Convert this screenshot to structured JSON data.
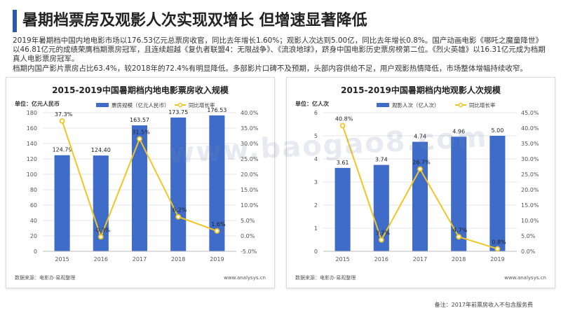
{
  "page": {
    "title": "暑期档票房及观影人次实现双增长 但增速显著降低",
    "paragraph1": "2019年暑期档中国内地电影市场以176.53亿元总票房收官，同比去年增长1.60%；观影人次达到5.00亿，同比去年增长0.8%。国产动画电影《哪吒之魔童降世》以46.81亿元的成绩荣膺档期票房冠军，且连续超越《复仇者联盟4：无限战争》、《流浪地球》，跻身中国电影历史票房榜第二位。《烈火英雄》以16.31亿元成为档期真人电影票房冠军。",
    "paragraph2": "档期内国产影片票房占比63.4%，较2018年的72.4%有明显降低。多部影片口碑不及预期，头部内容供给不足，用户观影热情降低，市场整体增幅持续收窄。",
    "watermark": "www.baogao8.com",
    "footnote": "备注：2017年前票房收入不包含服务费"
  },
  "colors": {
    "bar": "#3e6cc8",
    "line": "#f2c524",
    "grid": "#e6e6e6",
    "axis": "#555555"
  },
  "chart_data": [
    {
      "type": "bar",
      "title": "2015-2019中国暑期档内地电影票房收入规模",
      "unit_label": "单位：亿元人民币",
      "categories": [
        "2015",
        "2016",
        "2017",
        "2018",
        "2019"
      ],
      "series": [
        {
          "name": "票房规模（亿元人民币）",
          "type": "bar",
          "axis": "left",
          "values": [
            124.79,
            124.4,
            163.57,
            173.75,
            176.53
          ]
        },
        {
          "name": "同比增长率",
          "type": "line",
          "axis": "right",
          "values": [
            37.3,
            -0.3,
            31.5,
            6.2,
            1.6
          ]
        }
      ],
      "bar_labels": [
        "124.79",
        "124.40",
        "163.57",
        "173.75",
        "176.53"
      ],
      "line_labels": [
        "37.3%",
        "-0.3%",
        "31.5%",
        "6.2%",
        "1.6%"
      ],
      "y_left": {
        "min": 0,
        "max": 180,
        "step": 20,
        "ticks": [
          "0",
          "20",
          "40",
          "60",
          "80",
          "100",
          "120",
          "140",
          "160",
          "180"
        ]
      },
      "y_right": {
        "min": -5,
        "max": 40,
        "step": 5,
        "ticks": [
          "-5.0%",
          "0.0%",
          "5.0%",
          "10.0%",
          "15.0%",
          "20.0%",
          "25.0%",
          "30.0%",
          "35.0%",
          "40.0%"
        ]
      },
      "source": "数据来源：电影办·易观整理",
      "site": "www.analysys.cn"
    },
    {
      "type": "bar",
      "title": "2015-2019中国暑期档内地观影人次规模",
      "unit_label": "单位：亿人次",
      "categories": [
        "2015",
        "2016",
        "2017",
        "2018",
        "2019"
      ],
      "series": [
        {
          "name": "观影人次（亿人次）",
          "type": "bar",
          "axis": "left",
          "values": [
            3.61,
            3.74,
            4.74,
            4.96,
            5.0
          ]
        },
        {
          "name": "同比增长率",
          "type": "line",
          "axis": "right",
          "values": [
            40.8,
            3.7,
            26.7,
            4.7,
            0.8
          ]
        }
      ],
      "bar_labels": [
        "3.61",
        "3.74",
        "4.74",
        "4.96",
        "5.00"
      ],
      "line_labels": [
        "40.8%",
        "3.7%",
        "26.7%",
        "4.7%",
        "0.8%"
      ],
      "y_left": {
        "min": 0,
        "max": 6,
        "step": 1,
        "ticks": [
          "0",
          "1",
          "2",
          "3",
          "4",
          "5",
          "6"
        ]
      },
      "y_right": {
        "min": 0,
        "max": 45,
        "step": 5,
        "ticks": [
          "0.0%",
          "5.0%",
          "10.0%",
          "15.0%",
          "20.0%",
          "25.0%",
          "30.0%",
          "35.0%",
          "40.0%",
          "45.0%"
        ]
      },
      "source": "数据来源：电影办·易观整理",
      "site": "www.analysys.cn"
    }
  ]
}
